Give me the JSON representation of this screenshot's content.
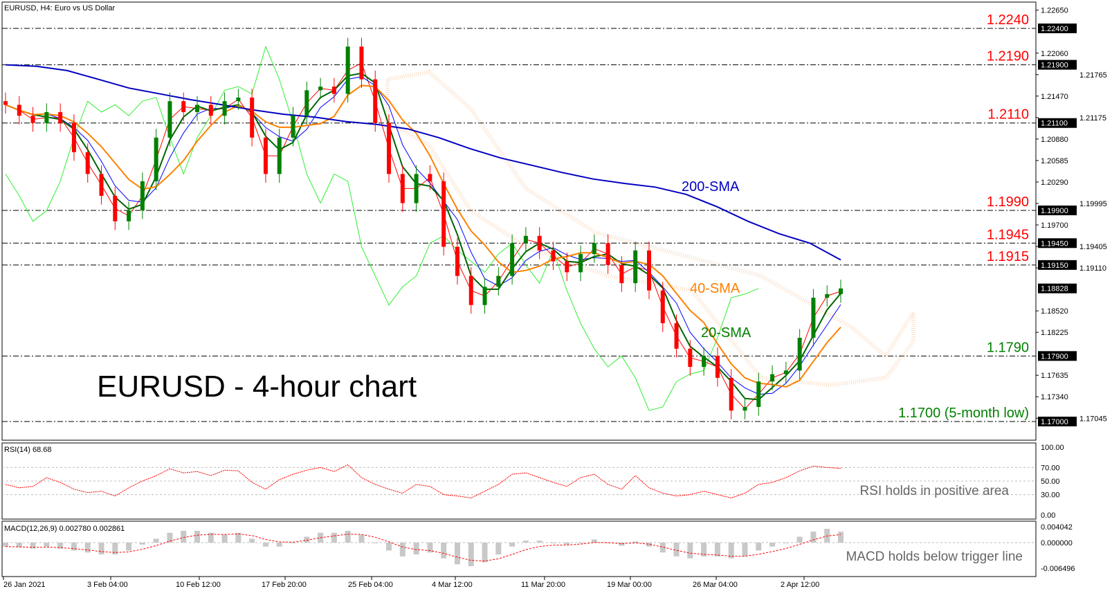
{
  "header": {
    "title": "EURUSD, H4:  Euro vs US Dollar",
    "big_title": "EURUSD - 4-hour chart"
  },
  "colors": {
    "bull": "#008000",
    "bear": "#ff0000",
    "sma20": "#006400",
    "sma40": "#ff8000",
    "sma200": "#0000c0",
    "tenkan": "#ff0000",
    "kijun": "#0000ff",
    "chikou": "#33ee33",
    "cloud": "#f4a460",
    "level_red": "#ff0000",
    "level_green": "#008000"
  },
  "chart_data": [
    {
      "type": "candlestick",
      "title": "EURUSD, H4:  Euro vs US Dollar",
      "x_ticks": [
        "26 Jan 2021",
        "3 Feb 04:00",
        "10 Feb 12:00",
        "17 Feb 20:00",
        "25 Feb 04:00",
        "4 Mar 12:00",
        "11 Mar 20:00",
        "19 Mar 00:00",
        "26 Mar 04:00",
        "2 Apr 12:00"
      ],
      "y_ticks": [
        "1.22650",
        "1.22060",
        "1.21765",
        "1.21470",
        "1.21175",
        "1.20880",
        "1.20585",
        "1.20290",
        "1.19995",
        "1.19700",
        "1.19405",
        "1.19110",
        "1.18520",
        "1.18225",
        "1.17635",
        "1.17340",
        "1.17045"
      ],
      "ylim": [
        1.168,
        1.2265
      ],
      "close": [
        1.2135,
        1.212,
        1.211,
        1.2125,
        1.211,
        1.207,
        1.204,
        1.201,
        1.1975,
        1.199,
        1.203,
        1.209,
        1.214,
        1.2125,
        1.2135,
        1.212,
        1.214,
        1.2145,
        1.209,
        1.204,
        1.209,
        1.212,
        1.2155,
        1.216,
        1.215,
        1.2215,
        1.217,
        1.211,
        1.204,
        1.2,
        1.204,
        1.203,
        1.194,
        1.19,
        1.186,
        1.1885,
        1.19,
        1.1945,
        1.1955,
        1.1935,
        1.192,
        1.1905,
        1.193,
        1.1945,
        1.1915,
        1.189,
        1.1935,
        1.188,
        1.1835,
        1.18,
        1.1775,
        1.179,
        1.176,
        1.1715,
        1.172,
        1.1755,
        1.1765,
        1.177,
        1.1815,
        1.187,
        1.1875,
        1.18828
      ],
      "sma200": [
        1.219,
        1.2188,
        1.2182,
        1.217,
        1.2158,
        1.215,
        1.2142,
        1.2135,
        1.2128,
        1.2122,
        1.2118,
        1.2112,
        1.2108,
        1.2102,
        1.209,
        1.2075,
        1.2062,
        1.2052,
        1.2042,
        1.2033,
        1.2027,
        1.2022,
        1.2012,
        1.1995,
        1.1975,
        1.1958,
        1.1945,
        1.1922
      ],
      "levels": [
        {
          "value": "1.2240",
          "price_tag": "1.22400",
          "color": "red"
        },
        {
          "value": "1.2190",
          "price_tag": "1.21900",
          "color": "red"
        },
        {
          "value": "1.2110",
          "price_tag": "1.21100",
          "color": "red"
        },
        {
          "value": "1.1990",
          "price_tag": "1.19900",
          "color": "red"
        },
        {
          "value": "1.1945",
          "price_tag": "1.19450",
          "color": "red"
        },
        {
          "value": "1.1915",
          "price_tag": "1.19150",
          "color": "red"
        },
        {
          "value": "1.1790",
          "price_tag": "1.17900",
          "color": "green"
        },
        {
          "value": "1.1700 (5-month low)",
          "price_tag": "1.17000",
          "color": "green"
        }
      ],
      "current_price_tag": "1.18828",
      "annotations": {
        "sma200": "200-SMA",
        "sma40": "40-SMA",
        "sma20": "20-SMA"
      }
    },
    {
      "type": "line",
      "title": "RSI(14) 68.68",
      "ylim": [
        0,
        100
      ],
      "y_ticks": [
        "100.00",
        "70.00",
        "50.00",
        "30.00",
        "0.00"
      ],
      "values": [
        45,
        40,
        42,
        55,
        48,
        38,
        33,
        35,
        28,
        40,
        50,
        58,
        68,
        62,
        64,
        58,
        66,
        65,
        48,
        38,
        52,
        60,
        66,
        70,
        64,
        74,
        55,
        45,
        38,
        32,
        45,
        42,
        30,
        28,
        25,
        35,
        45,
        60,
        62,
        55,
        48,
        42,
        55,
        60,
        45,
        38,
        58,
        40,
        32,
        28,
        30,
        35,
        30,
        25,
        32,
        45,
        48,
        55,
        65,
        72,
        70,
        68.68
      ],
      "annotation": "RSI holds in positive area"
    },
    {
      "type": "bar",
      "title": "MACD(12,26,9) 0.002780 0.002861",
      "ylim": [
        -0.006496,
        0.004042
      ],
      "y_ticks": [
        "0.004042",
        "0.000000",
        "-0.006496"
      ],
      "histogram": [
        -0.001,
        -0.0012,
        -0.0015,
        -0.001,
        -0.0015,
        -0.002,
        -0.0025,
        -0.003,
        -0.003,
        -0.002,
        -0.0005,
        0.001,
        0.0025,
        0.003,
        0.003,
        0.0025,
        0.002,
        0.0025,
        0.001,
        -0.001,
        -0.001,
        0.0,
        0.0015,
        0.0025,
        0.0025,
        0.003,
        0.002,
        0.0,
        -0.002,
        -0.0035,
        -0.003,
        -0.0025,
        -0.004,
        -0.0055,
        -0.006,
        -0.005,
        -0.003,
        -0.001,
        0.0005,
        0.0005,
        0.0,
        -0.0005,
        0.0,
        0.0008,
        0.0,
        -0.0008,
        0.0003,
        -0.001,
        -0.0025,
        -0.0035,
        -0.004,
        -0.0035,
        -0.0035,
        -0.004,
        -0.0035,
        -0.002,
        -0.001,
        0.0,
        0.0015,
        0.0028,
        0.0035,
        0.00278
      ],
      "signal_last": 0.002861,
      "annotation": "MACD holds below trigger line"
    }
  ]
}
